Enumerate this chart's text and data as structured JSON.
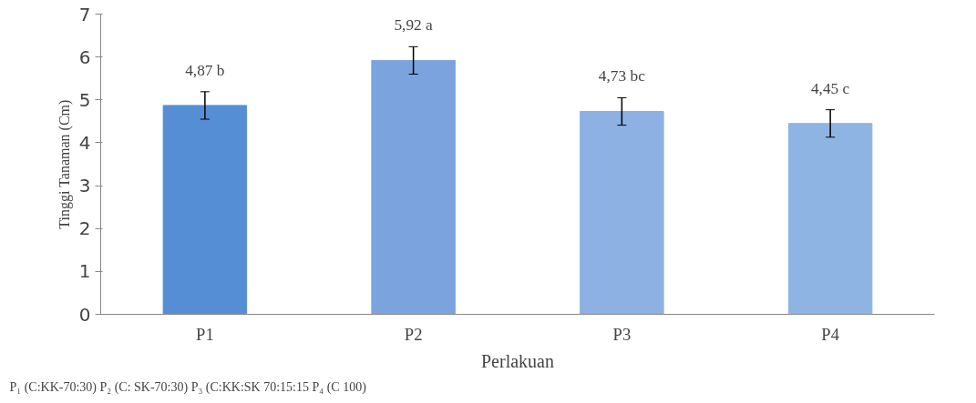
{
  "chart_data": {
    "type": "bar",
    "categories": [
      "P1",
      "P2",
      "P3",
      "P4"
    ],
    "values": [
      4.87,
      5.92,
      4.73,
      4.45
    ],
    "colors": [
      "#558ed5",
      "#7ba3de",
      "#8db1e2",
      "#8eb4e3"
    ],
    "errors": [
      0.32,
      0.32,
      0.32,
      0.32
    ],
    "value_labels": [
      "4,87 b",
      "5,92 a",
      "4,73 bc",
      "4,45 c"
    ],
    "xlabel": "Perlakuan",
    "ylabel": "Tinggi Tanaman (Cm)",
    "ylim": [
      0,
      7
    ],
    "yticks": [
      0,
      1,
      2,
      3,
      4,
      5,
      6,
      7
    ],
    "grid": false,
    "annotations": [
      "P₁ (C:KK-70:30)   P₂ (C: SK-70:30)   P₃ (C:KK:SK 70:15:15   P₄ (C 100)"
    ]
  }
}
